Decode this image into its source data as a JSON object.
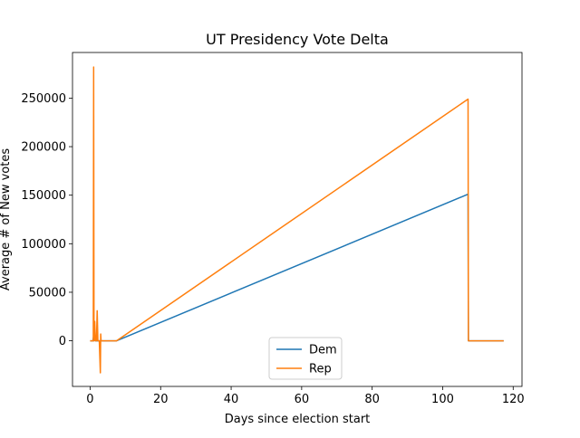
{
  "chart_data": {
    "type": "line",
    "title": "UT Presidency Vote Delta",
    "xlabel": "Days since election start",
    "ylabel": "Average # of New votes",
    "xlim": [
      -5,
      122.5
    ],
    "ylim": [
      -47000,
      297000
    ],
    "xticks": [
      0,
      20,
      40,
      60,
      80,
      100,
      120
    ],
    "yticks": [
      0,
      50000,
      100000,
      150000,
      200000,
      250000
    ],
    "legend": {
      "placement": "lower center"
    },
    "grid": false,
    "series": [
      {
        "name": "Dem",
        "color": "#1f77b4",
        "points": [
          [
            0.0,
            0
          ],
          [
            0.8,
            0
          ],
          [
            1.0,
            5000
          ],
          [
            1.1,
            0
          ],
          [
            1.3,
            3000
          ],
          [
            1.5,
            0
          ],
          [
            2.0,
            0
          ],
          [
            2.5,
            0
          ],
          [
            3.0,
            0
          ],
          [
            5.0,
            0
          ],
          [
            7.5,
            0
          ],
          [
            107.2,
            151000
          ],
          [
            107.3,
            0
          ],
          [
            117.3,
            0
          ]
        ]
      },
      {
        "name": "Rep",
        "color": "#ff7f0e",
        "points": [
          [
            0.0,
            0
          ],
          [
            0.9,
            0
          ],
          [
            1.0,
            282000
          ],
          [
            1.1,
            0
          ],
          [
            1.3,
            20000
          ],
          [
            1.5,
            0
          ],
          [
            1.8,
            0
          ],
          [
            2.0,
            31000
          ],
          [
            2.2,
            0
          ],
          [
            2.6,
            0
          ],
          [
            2.9,
            -33000
          ],
          [
            3.0,
            7000
          ],
          [
            3.1,
            0
          ],
          [
            5.0,
            0
          ],
          [
            7.5,
            0
          ],
          [
            107.2,
            249000
          ],
          [
            107.3,
            0
          ],
          [
            117.3,
            0
          ]
        ]
      }
    ]
  }
}
